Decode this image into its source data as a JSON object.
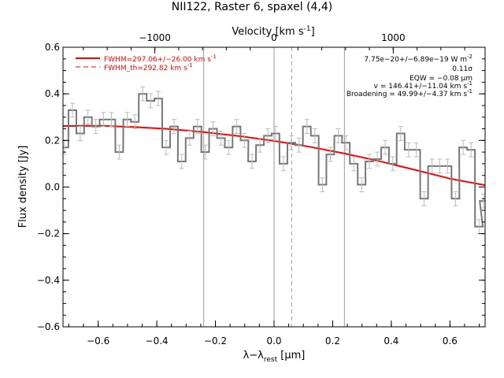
{
  "chart_data": {
    "type": "line",
    "title": "NII122, Raster 6, spaxel (4,4)",
    "xlabel_main": "λ−λ",
    "xlabel_sub": "rest",
    "xlabel_unit_pre": " [",
    "xlabel_unit_mu": "μ",
    "xlabel_unit_post": "m]",
    "ylabel": "Flux density [Jy]",
    "top_axis_label": "Velocity [km s",
    "top_axis_sup": "-1",
    "top_axis_label_end": "]",
    "xlim": [
      -0.72,
      0.72
    ],
    "ylim": [
      -0.6,
      0.6
    ],
    "x_ticks": [
      -0.6,
      -0.4,
      -0.2,
      0.0,
      0.2,
      0.4,
      0.6
    ],
    "x_tick_labels": [
      "−0.6",
      "−0.4",
      "−0.2",
      "0.0",
      "0.2",
      "0.4",
      "0.6"
    ],
    "y_ticks": [
      -0.6,
      -0.4,
      -0.2,
      0.0,
      0.2,
      0.4,
      0.6
    ],
    "y_tick_labels": [
      "−0.6",
      "−0.4",
      "−0.2",
      "0.0",
      "0.2",
      "0.4",
      "0.6"
    ],
    "top_ticks_velocity": [
      -1000,
      0,
      1000
    ],
    "top_tick_labels": [
      "−1000",
      "0",
      "1000"
    ],
    "rest_wavelength_um": 121.9,
    "vertical_lines_solid": [
      -0.24,
      0.0,
      0.24
    ],
    "vertical_lines_dashed": [
      0.06
    ],
    "legend": {
      "placement": "top-left",
      "entries": [
        {
          "text": "FWHM=297.06+/−26.00 km s",
          "sup": "-1",
          "style": "solid"
        },
        {
          "text": "FWHM_th=292.82 km s",
          "sup": "-1",
          "style": "dashed"
        }
      ]
    },
    "annotations": [
      {
        "text": "7.75e−20+/−6.89e−19 W m",
        "sup": "-2"
      },
      {
        "text": "0.11σ",
        "sup": ""
      },
      {
        "text": "EQW = −0.08 μm",
        "sup": ""
      },
      {
        "text": "v = 146.41+/−11.04 km s",
        "sup": "-1"
      },
      {
        "text": "Broadening = 49.99+/−4.37 km s",
        "sup": "-1"
      }
    ],
    "series": [
      {
        "name": "spectrum",
        "color": "#777777",
        "step_width": 0.0266,
        "x": [
          -0.715,
          -0.688,
          -0.661,
          -0.635,
          -0.608,
          -0.582,
          -0.555,
          -0.528,
          -0.501,
          -0.475,
          -0.448,
          -0.421,
          -0.395,
          -0.368,
          -0.341,
          -0.315,
          -0.288,
          -0.261,
          -0.235,
          -0.208,
          -0.181,
          -0.155,
          -0.128,
          -0.101,
          -0.075,
          -0.048,
          -0.021,
          0.005,
          0.032,
          0.059,
          0.085,
          0.112,
          0.139,
          0.165,
          0.192,
          0.219,
          0.245,
          0.272,
          0.299,
          0.325,
          0.352,
          0.379,
          0.405,
          0.432,
          0.459,
          0.485,
          0.512,
          0.539,
          0.565,
          0.592,
          0.619,
          0.645,
          0.672,
          0.699,
          0.715
        ],
        "y": [
          0.17,
          0.33,
          0.23,
          0.3,
          0.26,
          0.29,
          0.29,
          0.15,
          0.29,
          0.28,
          0.4,
          0.37,
          0.38,
          0.17,
          0.26,
          0.11,
          0.21,
          0.26,
          0.15,
          0.25,
          0.21,
          0.17,
          0.26,
          0.2,
          0.11,
          0.18,
          0.22,
          0.23,
          0.1,
          0.19,
          0.18,
          0.26,
          0.22,
          0.01,
          0.14,
          0.22,
          0.19,
          0.1,
          0.01,
          0.11,
          0.12,
          0.17,
          0.1,
          0.23,
          0.16,
          0.16,
          -0.05,
          0.09,
          0.09,
          0.09,
          -0.05,
          0.17,
          0.16,
          -0.17,
          -0.06
        ],
        "err": 0.03
      },
      {
        "name": "FWHM=297.06+/−26.00 km s-1",
        "color": "#ff0000",
        "x": [
          -0.72,
          -0.6,
          -0.48,
          -0.36,
          -0.24,
          -0.12,
          0.0,
          0.12,
          0.24,
          0.36,
          0.48,
          0.6,
          0.72
        ],
        "y": [
          0.262,
          0.263,
          0.258,
          0.249,
          0.236,
          0.219,
          0.198,
          0.173,
          0.144,
          0.111,
          0.074,
          0.036,
          0.008
        ]
      }
    ]
  }
}
